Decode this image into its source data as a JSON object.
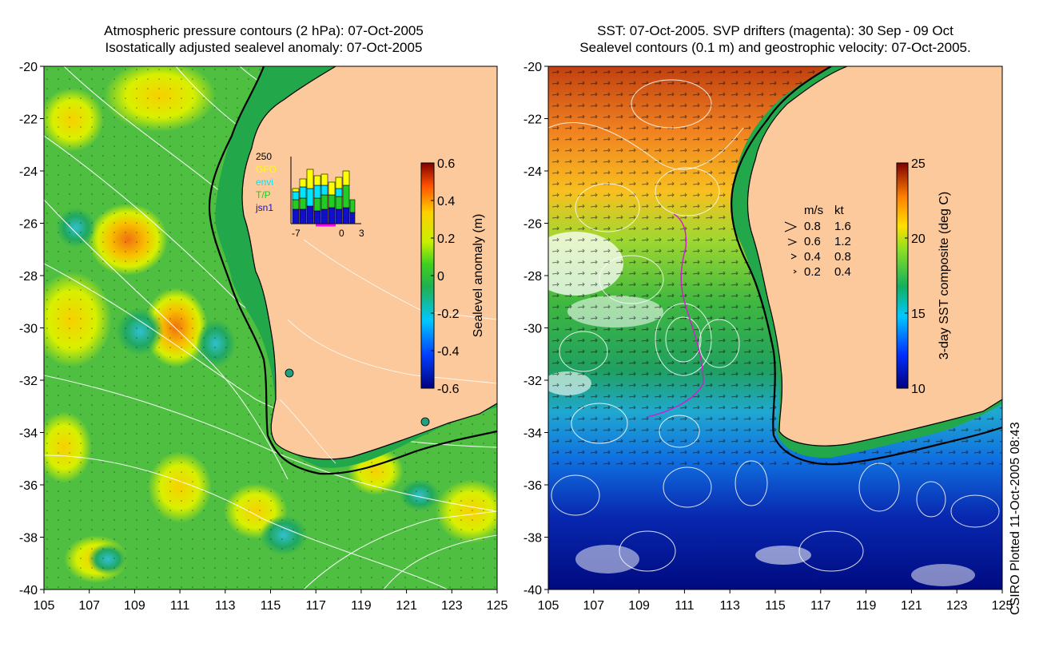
{
  "left_panel": {
    "title_line1": "Atmospheric pressure contours (2 hPa): 07-Oct-2005",
    "title_line2": "Isostatically adjusted sealevel anomaly: 07-Oct-2005",
    "y_ticks": [
      "-20",
      "-22",
      "-24",
      "-26",
      "-28",
      "-30",
      "-32",
      "-34",
      "-36",
      "-38",
      "-40"
    ],
    "x_ticks": [
      "105",
      "107",
      "109",
      "111",
      "113",
      "115",
      "117",
      "119",
      "121",
      "123",
      "125"
    ],
    "colorbar": {
      "label": "Sealevel anomaly (m)",
      "ticks": [
        "0.6",
        "0.4",
        "0.2",
        "0",
        "-0.2",
        "-0.4",
        "-0.6"
      ],
      "range": [
        -0.6,
        0.6
      ]
    },
    "histogram": {
      "ymax_label": "250",
      "x_labels": [
        "-7",
        "0",
        "3"
      ],
      "missions": [
        {
          "name": "GFO",
          "color": "#ffff00"
        },
        {
          "name": "envi",
          "color": "#00e5ff"
        },
        {
          "name": "T/P",
          "color": "#22cc22"
        },
        {
          "name": "jsn1",
          "color": "#1010cc"
        }
      ]
    }
  },
  "right_panel": {
    "title_line1": "SST: 07-Oct-2005. SVP drifters (magenta): 30 Sep - 09 Oct",
    "title_line2": "Sealevel contours (0.1 m) and geostrophic velocity: 07-Oct-2005.",
    "y_ticks": [
      "-20",
      "-22",
      "-24",
      "-26",
      "-28",
      "-30",
      "-32",
      "-34",
      "-36",
      "-38",
      "-40"
    ],
    "x_ticks": [
      "105",
      "107",
      "109",
      "111",
      "113",
      "115",
      "117",
      "119",
      "121",
      "123",
      "125"
    ],
    "colorbar": {
      "label": "3-day SST composite (deg C)",
      "ticks": [
        "25",
        "20",
        "15",
        "10"
      ],
      "range": [
        10,
        25
      ]
    },
    "velocity_legend": {
      "header_ms": "m/s",
      "header_kt": "kt",
      "rows": [
        {
          "ms": "0.8",
          "kt": "1.6"
        },
        {
          "ms": "0.6",
          "kt": "1.2"
        },
        {
          "ms": "0.4",
          "kt": "0.8"
        },
        {
          "ms": "0.2",
          "kt": "0.4"
        }
      ]
    }
  },
  "credit": "CSIRO Plotted 11-Oct-2005 08:43",
  "colors": {
    "land": "#fbc99b",
    "shelf_green": "#22a84a",
    "contour": "#ffffff",
    "drifter": "#cc22cc",
    "coast": "#000000"
  }
}
